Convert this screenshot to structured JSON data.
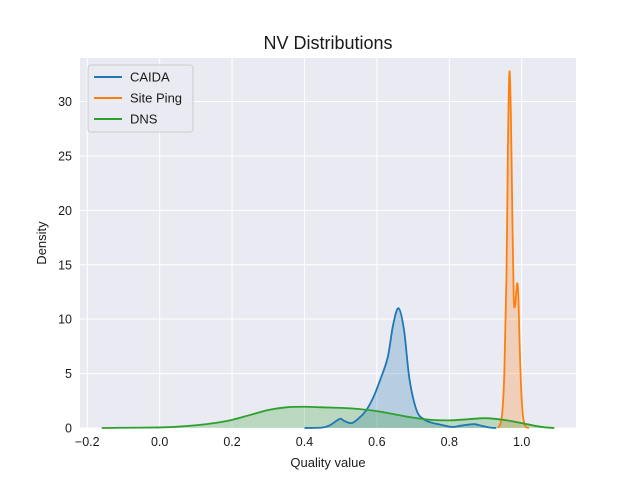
{
  "chart_data": {
    "type": "area",
    "title": "NV Distributions",
    "xlabel": "Quality value",
    "ylabel": "Density",
    "xlim": [
      -0.22,
      1.15
    ],
    "ylim": [
      0,
      34
    ],
    "xticks": [
      -0.2,
      0.0,
      0.2,
      0.4,
      0.6,
      0.8,
      1.0
    ],
    "xtick_labels": [
      "−0.2",
      "0.0",
      "0.2",
      "0.4",
      "0.6",
      "0.8",
      "1.0"
    ],
    "yticks": [
      0,
      5,
      10,
      15,
      20,
      25,
      30
    ],
    "ytick_labels": [
      "0",
      "5",
      "10",
      "15",
      "20",
      "25",
      "30"
    ],
    "grid": true,
    "legend_position": "top-left",
    "background_color": "#eaeaf2",
    "grid_color": "#ffffff",
    "series": [
      {
        "name": "CAIDA",
        "color": "#1f77b4",
        "x": [
          0.4,
          0.45,
          0.47,
          0.49,
          0.5,
          0.51,
          0.53,
          0.55,
          0.57,
          0.59,
          0.61,
          0.63,
          0.645,
          0.66,
          0.675,
          0.69,
          0.71,
          0.73,
          0.75,
          0.77,
          0.79,
          0.81,
          0.83,
          0.85,
          0.87,
          0.89,
          0.91,
          0.93
        ],
        "y": [
          0.0,
          0.05,
          0.25,
          0.7,
          0.85,
          0.65,
          0.45,
          0.9,
          1.6,
          2.8,
          4.5,
          6.5,
          9.5,
          11.0,
          9.0,
          4.5,
          1.6,
          0.8,
          0.5,
          0.35,
          0.2,
          0.1,
          0.2,
          0.3,
          0.35,
          0.2,
          0.05,
          0.0
        ]
      },
      {
        "name": "Site Ping",
        "color": "#ff7f0e",
        "x": [
          0.935,
          0.945,
          0.952,
          0.958,
          0.962,
          0.966,
          0.97,
          0.974,
          0.978,
          0.982,
          0.985,
          0.988,
          0.991,
          0.994,
          0.998,
          1.002,
          1.006,
          1.012,
          1.02
        ],
        "y": [
          0.0,
          1.0,
          5.0,
          14.0,
          26.0,
          32.7,
          29.0,
          20.0,
          12.0,
          11.3,
          12.5,
          13.3,
          12.0,
          8.0,
          4.0,
          1.6,
          0.6,
          0.1,
          0.0
        ]
      },
      {
        "name": "DNS",
        "color": "#2ca02c",
        "x": [
          -0.16,
          -0.1,
          0.0,
          0.05,
          0.1,
          0.15,
          0.2,
          0.25,
          0.3,
          0.35,
          0.4,
          0.45,
          0.5,
          0.55,
          0.6,
          0.65,
          0.7,
          0.75,
          0.8,
          0.85,
          0.9,
          0.95,
          1.0,
          1.05,
          1.09
        ],
        "y": [
          0.0,
          0.02,
          0.05,
          0.12,
          0.25,
          0.45,
          0.75,
          1.2,
          1.65,
          1.9,
          1.95,
          1.9,
          1.85,
          1.75,
          1.55,
          1.25,
          0.95,
          0.75,
          0.7,
          0.8,
          0.9,
          0.75,
          0.45,
          0.12,
          0.0
        ]
      }
    ]
  }
}
